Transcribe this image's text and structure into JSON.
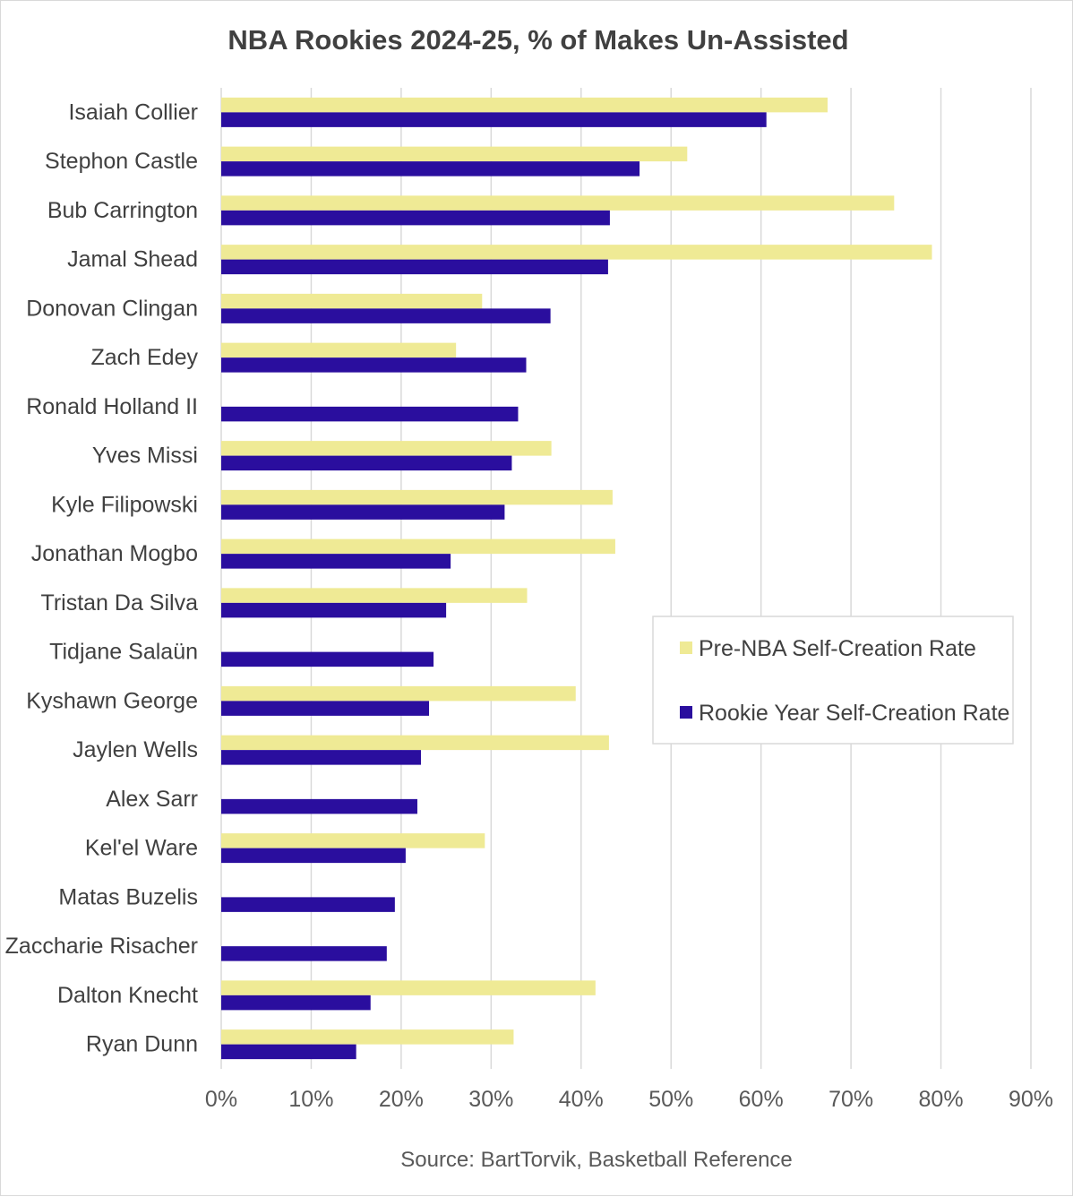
{
  "chart_data": {
    "type": "bar",
    "orientation": "horizontal",
    "title": "NBA Rookies 2024-25, % of Makes Un-Assisted",
    "source": "Source: BartTorvik, Basketball Reference",
    "xlim": [
      0,
      90
    ],
    "x_ticks": [
      "0%",
      "10%",
      "20%",
      "30%",
      "40%",
      "50%",
      "60%",
      "70%",
      "80%",
      "90%"
    ],
    "grid": "vertical",
    "legend_position": "right",
    "categories": [
      "Isaiah Collier",
      "Stephon Castle",
      "Bub Carrington",
      "Jamal Shead",
      "Donovan Clingan",
      "Zach Edey",
      "Ronald Holland II",
      "Yves Missi",
      "Kyle Filipowski",
      "Jonathan Mogbo",
      "Tristan Da Silva",
      "Tidjane Salaün",
      "Kyshawn George",
      "Jaylen Wells",
      "Alex Sarr",
      "Kel'el Ware",
      "Matas Buzelis",
      "Zaccharie Risacher",
      "Dalton Knecht",
      "Ryan Dunn"
    ],
    "series": [
      {
        "name": "Pre-NBA Self-Creation Rate",
        "color": "#EFEA95",
        "values": [
          67.4,
          51.8,
          74.8,
          79.0,
          29.0,
          26.1,
          null,
          36.7,
          43.5,
          43.8,
          34.0,
          null,
          39.4,
          43.1,
          null,
          29.3,
          null,
          null,
          41.6,
          32.5
        ]
      },
      {
        "name": "Rookie Year Self-Creation Rate",
        "color": "#2A0E9E",
        "values": [
          60.6,
          46.5,
          43.2,
          43.0,
          36.6,
          33.9,
          33.0,
          32.3,
          31.5,
          25.5,
          25.0,
          23.6,
          23.1,
          22.2,
          21.8,
          20.5,
          19.3,
          18.4,
          16.6,
          15.0
        ]
      }
    ]
  }
}
